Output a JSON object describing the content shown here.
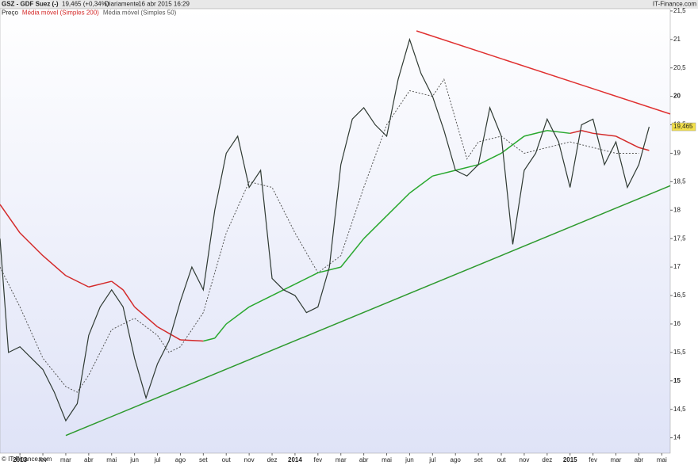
{
  "header": {
    "title": "GSZ - GDF Suez (-)",
    "quote": "19,465 (+0,34%)",
    "period": "Diariamente",
    "timestamp": "16 abr 2015 16:29",
    "brand": "IT-Finance.com"
  },
  "footer": {
    "copyright": "© IT-Finance.com"
  },
  "chart_data": {
    "type": "line",
    "x": [
      -0.87,
      -0.5,
      0,
      0.5,
      1,
      1.5,
      2,
      2.5,
      3,
      3.5,
      4,
      4.5,
      5,
      5.5,
      6,
      6.5,
      7,
      7.5,
      8,
      8.5,
      9,
      9.5,
      10,
      10.5,
      11,
      11.5,
      12,
      12.5,
      13,
      13.5,
      14,
      14.5,
      15,
      15.5,
      16,
      16.5,
      17,
      17.5,
      18,
      18.5,
      19,
      19.5,
      20,
      20.5,
      21,
      21.5,
      22,
      22.5,
      23,
      23.5,
      24,
      24.5,
      25,
      25.5,
      26,
      26.5,
      27,
      27.45
    ],
    "series": [
      {
        "name": "Preço",
        "color": "#2f3a33",
        "values": [
          17.5,
          15.5,
          15.6,
          15.4,
          15.2,
          14.8,
          14.3,
          14.6,
          15.8,
          16.3,
          16.6,
          16.3,
          15.4,
          14.7,
          15.3,
          15.7,
          16.4,
          17.0,
          16.6,
          18.0,
          19.0,
          19.3,
          18.4,
          18.7,
          16.8,
          16.6,
          16.5,
          16.2,
          16.3,
          17.0,
          18.8,
          19.6,
          19.8,
          19.5,
          19.3,
          20.3,
          21.0,
          20.4,
          20.0,
          19.4,
          18.7,
          18.6,
          18.8,
          19.8,
          19.3,
          17.4,
          18.7,
          19.0,
          19.6,
          19.2,
          18.4,
          19.5,
          19.6,
          18.8,
          19.2,
          18.4,
          18.8,
          19.465
        ]
      },
      {
        "name": "Média móvel (Simples 200)",
        "color": "#d42a2a",
        "x": [
          -0.87,
          0,
          1,
          2,
          3,
          4,
          4.5,
          5,
          6,
          7,
          8,
          8.5,
          9,
          10,
          11,
          12,
          13,
          14,
          15,
          16,
          17,
          18,
          19,
          20,
          21,
          22,
          23,
          24,
          24.5,
          25,
          26,
          27,
          27.45
        ],
        "values": [
          18.1,
          17.6,
          17.2,
          16.85,
          16.65,
          16.75,
          16.6,
          16.3,
          15.95,
          15.72,
          15.7,
          15.75,
          16.0,
          16.3,
          16.5,
          16.7,
          16.9,
          17.0,
          17.5,
          17.9,
          18.3,
          18.6,
          18.7,
          18.8,
          19.0,
          19.3,
          19.4,
          19.35,
          19.4,
          19.35,
          19.3,
          19.1,
          19.05
        ],
        "colors": [
          "#d42a2a",
          "#d42a2a",
          "#d42a2a",
          "#d42a2a",
          "#d42a2a",
          "#d42a2a",
          "#d42a2a",
          "#d42a2a",
          "#d42a2a",
          "#d42a2a",
          "#d42a2a",
          "#29a82e",
          "#29a82e",
          "#29a82e",
          "#29a82e",
          "#29a82e",
          "#29a82e",
          "#29a82e",
          "#29a82e",
          "#29a82e",
          "#29a82e",
          "#29a82e",
          "#29a82e",
          "#29a82e",
          "#29a82e",
          "#29a82e",
          "#29a82e",
          "#29a82e",
          "#d42a2a",
          "#d42a2a",
          "#d42a2a",
          "#d42a2a",
          "#d42a2a"
        ]
      },
      {
        "name": "Média móvel (Simples 50)",
        "color": "#555555",
        "dashed": true,
        "x": [
          -0.87,
          0,
          1,
          2,
          2.5,
          3,
          4,
          5,
          6,
          6.5,
          7,
          8,
          9,
          10,
          11,
          12,
          13,
          14,
          15,
          16,
          17,
          18,
          18.5,
          19,
          19.5,
          20,
          21,
          22,
          23,
          24,
          25,
          26,
          27
        ],
        "values": [
          17.0,
          16.3,
          15.4,
          14.9,
          14.8,
          15.1,
          15.9,
          16.1,
          15.8,
          15.5,
          15.6,
          16.2,
          17.6,
          18.5,
          18.4,
          17.6,
          16.9,
          17.2,
          18.4,
          19.5,
          20.1,
          20.0,
          20.3,
          19.6,
          18.9,
          19.2,
          19.3,
          19.0,
          19.1,
          19.2,
          19.1,
          19.0,
          19.0
        ]
      }
    ],
    "trendlines": [
      {
        "color": "#e03030",
        "x": [
          17.3,
          28.37
        ],
        "values": [
          21.15,
          19.69
        ]
      },
      {
        "color": "#2e9a2e",
        "x": [
          2.0,
          28.37
        ],
        "values": [
          14.04,
          18.43
        ]
      }
    ],
    "last_price": {
      "value": 19.465,
      "label": "19,465"
    },
    "xlim": [
      -0.87,
      28.37
    ],
    "xticks": [
      {
        "value": 0,
        "label": "2013"
      },
      {
        "value": 1,
        "label": "fev"
      },
      {
        "value": 2,
        "label": "mar"
      },
      {
        "value": 3,
        "label": "abr"
      },
      {
        "value": 4,
        "label": "mai"
      },
      {
        "value": 5,
        "label": "jun"
      },
      {
        "value": 6,
        "label": "jul"
      },
      {
        "value": 7,
        "label": "ago"
      },
      {
        "value": 8,
        "label": "set"
      },
      {
        "value": 9,
        "label": "out"
      },
      {
        "value": 10,
        "label": "nov"
      },
      {
        "value": 11,
        "label": "dez"
      },
      {
        "value": 12,
        "label": "2014"
      },
      {
        "value": 13,
        "label": "fev"
      },
      {
        "value": 14,
        "label": "mar"
      },
      {
        "value": 15,
        "label": "abr"
      },
      {
        "value": 16,
        "label": "mai"
      },
      {
        "value": 17,
        "label": "jun"
      },
      {
        "value": 18,
        "label": "jul"
      },
      {
        "value": 19,
        "label": "ago"
      },
      {
        "value": 20,
        "label": "set"
      },
      {
        "value": 21,
        "label": "out"
      },
      {
        "value": 22,
        "label": "nov"
      },
      {
        "value": 23,
        "label": "dez"
      },
      {
        "value": 24,
        "label": "2015"
      },
      {
        "value": 25,
        "label": "fev"
      },
      {
        "value": 26,
        "label": "mar"
      },
      {
        "value": 27,
        "label": "abr"
      },
      {
        "value": 28,
        "label": "mai"
      }
    ],
    "ylim": [
      13.73,
      21.54
    ],
    "yticks": [
      14,
      {
        "value": 14.5,
        "label": "14,5"
      },
      15,
      {
        "value": 15.5,
        "label": "15,5"
      },
      16,
      {
        "value": 16.5,
        "label": "16,5"
      },
      17,
      {
        "value": 17.5,
        "label": "17,5"
      },
      18,
      {
        "value": 18.5,
        "label": "18,5"
      },
      19,
      {
        "value": 19.5,
        "label": "19,5"
      },
      20,
      {
        "value": 20.5,
        "label": "20,5"
      },
      21,
      {
        "value": 21.5,
        "label": "21,5"
      }
    ]
  }
}
